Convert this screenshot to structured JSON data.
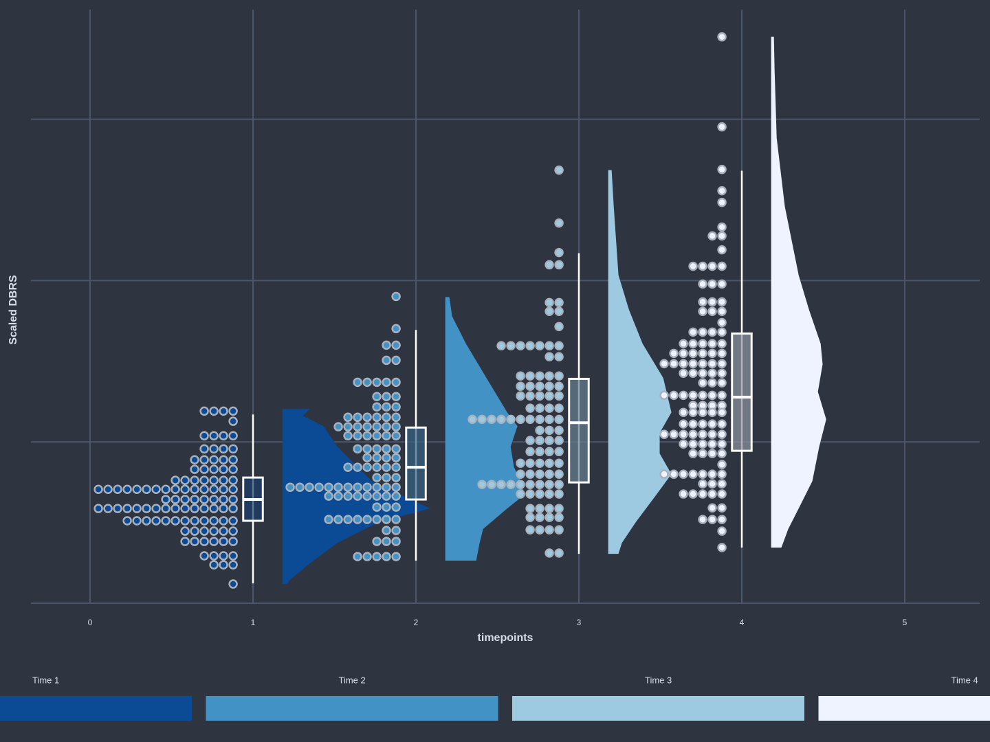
{
  "chart_data": {
    "type": "raincloud",
    "xlabel": "timepoints",
    "ylabel": "Scaled DBRS",
    "xlim": [
      -0.363,
      5.46
    ],
    "xticks": [
      0,
      1,
      2,
      3,
      4,
      5
    ],
    "ylim": [
      0,
      3.68
    ],
    "yticks": [
      0,
      1,
      2,
      3
    ],
    "grid": true,
    "legend_position": "bottom",
    "groups": [
      {
        "name": "Time 1",
        "x": 1,
        "color": "#0b4a94",
        "box": {
          "min": 0.123,
          "q1": 0.511,
          "median": 0.643,
          "q3": 0.779,
          "max": 1.17
        },
        "dots": {
          "y": [
            1.191,
            1.128,
            1.038,
            0.957,
            0.889,
            0.83,
            0.762,
            0.706,
            0.643,
            0.587,
            0.511,
            0.447,
            0.383,
            0.294,
            0.238,
            0.119
          ],
          "count": [
            4,
            1,
            4,
            4,
            5,
            5,
            7,
            15,
            8,
            15,
            12,
            6,
            6,
            4,
            3,
            1
          ]
        },
        "density": {
          "y": [
            1.204,
            1.162,
            1.098,
            0.97,
            0.757,
            0.587,
            0.502,
            0.374,
            0.247,
            0.14,
            0.119
          ],
          "width": [
            0.169,
            0.127,
            0.253,
            0.338,
            0.549,
            0.907,
            0.591,
            0.338,
            0.169,
            0.042,
            0.03
          ]
        }
      },
      {
        "name": "Time 2",
        "x": 2,
        "color": "#4292c6",
        "box": {
          "min": 0.264,
          "q1": 0.643,
          "median": 0.843,
          "q3": 1.089,
          "max": 1.694
        },
        "dots": {
          "y": [
            1.902,
            1.702,
            1.6,
            1.506,
            1.37,
            1.281,
            1.217,
            1.153,
            1.094,
            1.038,
            0.957,
            0.902,
            0.843,
            0.779,
            0.719,
            0.664,
            0.596,
            0.519,
            0.451,
            0.383,
            0.289
          ],
          "count": [
            1,
            1,
            2,
            2,
            5,
            3,
            3,
            6,
            7,
            6,
            5,
            4,
            6,
            3,
            12,
            8,
            3,
            8,
            2,
            3,
            5
          ]
        },
        "density": {
          "y": [
            1.898,
            1.779,
            1.609,
            1.396,
            1.183,
            1.098,
            0.97,
            0.843,
            0.757,
            0.672,
            0.587,
            0.46,
            0.374,
            0.264
          ],
          "width": [
            0.025,
            0.042,
            0.127,
            0.253,
            0.38,
            0.443,
            0.401,
            0.422,
            0.464,
            0.485,
            0.38,
            0.232,
            0.211,
            0.19
          ]
        }
      },
      {
        "name": "Time 3",
        "x": 3,
        "color": "#9ecae1",
        "box": {
          "min": 0.306,
          "q1": 0.749,
          "median": 1.119,
          "q3": 1.391,
          "max": 2.17
        },
        "dots": {
          "y": [
            2.685,
            2.357,
            2.174,
            2.098,
            1.864,
            1.809,
            1.715,
            1.596,
            1.528,
            1.409,
            1.345,
            1.285,
            1.209,
            1.14,
            1.072,
            1.009,
            0.94,
            0.868,
            0.8,
            0.736,
            0.677,
            0.587,
            0.532,
            0.455,
            0.311
          ],
          "count": [
            1,
            1,
            1,
            2,
            2,
            2,
            1,
            7,
            2,
            5,
            5,
            5,
            4,
            10,
            3,
            4,
            4,
            5,
            5,
            9,
            5,
            4,
            4,
            4,
            2
          ]
        },
        "density": {
          "y": [
            2.685,
            2.46,
            2.034,
            1.821,
            1.609,
            1.396,
            1.183,
            1.055,
            0.928,
            0.8,
            0.672,
            0.502,
            0.374,
            0.306
          ],
          "width": [
            0.021,
            0.034,
            0.063,
            0.127,
            0.211,
            0.338,
            0.388,
            0.316,
            0.316,
            0.388,
            0.295,
            0.169,
            0.084,
            0.063
          ]
        }
      },
      {
        "name": "Time 4",
        "x": 4,
        "color": "#eff3ff",
        "box": {
          "min": 0.345,
          "q1": 0.945,
          "median": 1.277,
          "q3": 1.672,
          "max": 2.681
        },
        "dots": {
          "y": [
            3.511,
            2.953,
            2.689,
            2.557,
            2.485,
            2.332,
            2.277,
            2.191,
            2.089,
            1.979,
            1.868,
            1.809,
            1.74,
            1.681,
            1.609,
            1.549,
            1.485,
            1.426,
            1.366,
            1.289,
            1.226,
            1.183,
            1.111,
            1.047,
            0.987,
            0.928,
            0.86,
            0.8,
            0.74,
            0.677,
            0.591,
            0.519,
            0.447,
            0.345
          ],
          "count": [
            1,
            1,
            1,
            1,
            1,
            1,
            2,
            1,
            4,
            3,
            3,
            3,
            1,
            4,
            5,
            6,
            7,
            5,
            3,
            7,
            4,
            5,
            5,
            7,
            5,
            4,
            1,
            7,
            3,
            5,
            2,
            3,
            1,
            1
          ]
        },
        "density": {
          "y": [
            3.511,
            3.311,
            2.885,
            2.46,
            2.034,
            1.821,
            1.609,
            1.481,
            1.311,
            1.14,
            0.97,
            0.757,
            0.587,
            0.46,
            0.345
          ],
          "width": [
            0.017,
            0.021,
            0.034,
            0.084,
            0.169,
            0.232,
            0.304,
            0.316,
            0.287,
            0.338,
            0.295,
            0.253,
            0.169,
            0.105,
            0.063
          ]
        }
      }
    ]
  }
}
